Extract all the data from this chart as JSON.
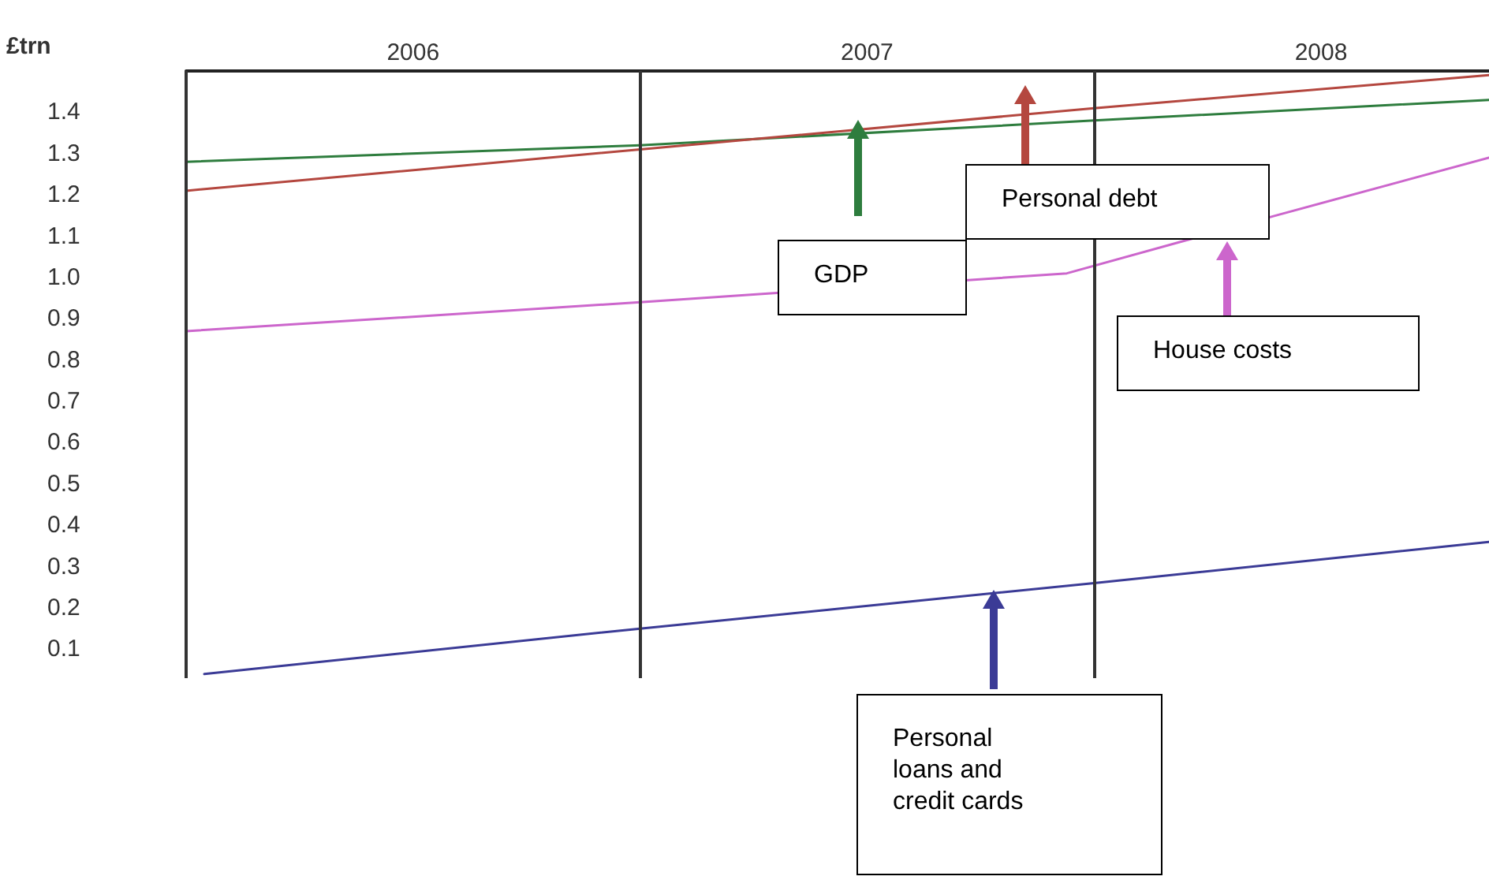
{
  "chart_data": {
    "type": "line",
    "ylabel": "£trn",
    "xlim": [
      2006,
      2008.87
    ],
    "ylim": [
      0.03,
      1.5
    ],
    "xticks": [
      {
        "value": 2006.5,
        "label": "2006"
      },
      {
        "value": 2007.5,
        "label": "2007"
      },
      {
        "value": 2008.5,
        "label": "2008"
      }
    ],
    "yticks": [
      {
        "value": 0.1,
        "label": "0.1"
      },
      {
        "value": 0.2,
        "label": "0.2"
      },
      {
        "value": 0.3,
        "label": "0.3"
      },
      {
        "value": 0.4,
        "label": "0.4"
      },
      {
        "value": 0.5,
        "label": "0.5"
      },
      {
        "value": 0.6,
        "label": "0.6"
      },
      {
        "value": 0.7,
        "label": "0.7"
      },
      {
        "value": 0.8,
        "label": "0.8"
      },
      {
        "value": 0.9,
        "label": "0.9"
      },
      {
        "value": 1.0,
        "label": "1.0"
      },
      {
        "value": 1.1,
        "label": "1.1"
      },
      {
        "value": 1.2,
        "label": "1.2"
      },
      {
        "value": 1.3,
        "label": "1.3"
      },
      {
        "value": 1.4,
        "label": "1.4"
      }
    ],
    "series": [
      {
        "color": "#2e7d3e",
        "x": [
          2006,
          2007,
          2008,
          2008.87
        ],
        "values": [
          1.28,
          1.32,
          1.38,
          1.43
        ]
      },
      {
        "color": "#b4473f",
        "x": [
          2006,
          2007,
          2008,
          2008.87
        ],
        "values": [
          1.21,
          1.31,
          1.41,
          1.49
        ]
      },
      {
        "color": "#cc66cc",
        "x": [
          2006,
          2007,
          2007.94,
          2008.4,
          2008.87
        ],
        "values": [
          0.87,
          0.94,
          1.01,
          1.15,
          1.29
        ]
      },
      {
        "color": "#3b3b96",
        "x": [
          2006.04,
          2007,
          2008,
          2008.87
        ],
        "values": [
          0.04,
          0.15,
          0.26,
          0.36
        ]
      }
    ],
    "annotations": [
      "GDP",
      "Personal debt",
      "House costs",
      "Personal loans and credit cards"
    ],
    "ref_lines": [
      {
        "axis": "x",
        "value": 2006,
        "color": "#333333"
      },
      {
        "axis": "x",
        "value": 2007,
        "color": "#333333"
      },
      {
        "axis": "x",
        "value": 2008,
        "color": "#333333"
      }
    ],
    "grid": false,
    "marker": "none",
    "line_style": "solid"
  }
}
